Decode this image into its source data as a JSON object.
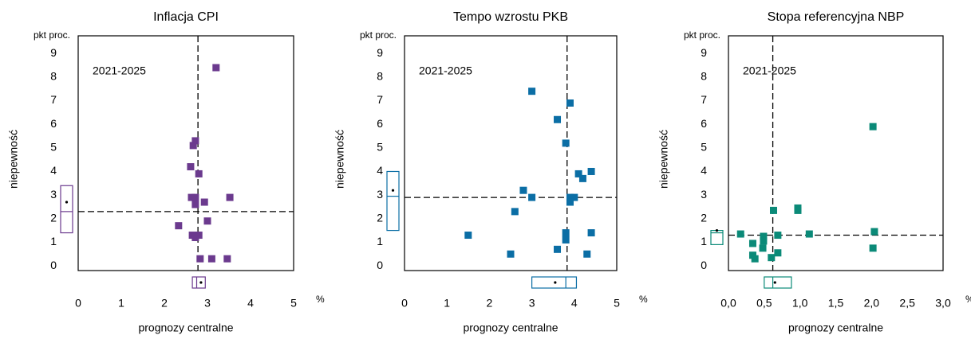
{
  "chart_data": [
    {
      "type": "scatter",
      "title": "Inflacja CPI",
      "y_unit": "pkt proc.",
      "x_unit": "%",
      "y_label": "niepewność",
      "x_label": "prognozy centralne",
      "period": "2021-2025",
      "color": "#6b3a8e",
      "x": [
        3.2,
        2.72,
        2.67,
        2.61,
        2.8,
        2.63,
        2.72,
        2.93,
        2.72,
        3.52,
        3.0,
        2.33,
        2.65,
        2.8,
        2.72,
        2.83,
        3.1,
        3.46
      ],
      "y": [
        8.4,
        5.3,
        5.1,
        4.2,
        3.9,
        2.9,
        2.9,
        2.7,
        2.6,
        2.9,
        1.9,
        1.7,
        1.3,
        1.3,
        1.2,
        0.3,
        0.3,
        0.3
      ],
      "ref_x": 2.78,
      "ref_y": 2.3,
      "box_x": {
        "q1": 2.65,
        "median": 2.75,
        "q3": 2.95,
        "mean": 2.85
      },
      "box_y": {
        "q1": 1.4,
        "median": 2.3,
        "q3": 3.4,
        "mean": 2.7
      },
      "xlim": [
        0,
        5
      ],
      "ylim": [
        -0.2,
        9.75
      ],
      "xticks": [
        0,
        1,
        2,
        3,
        4,
        5
      ],
      "yticks": [
        0,
        1,
        2,
        3,
        4,
        5,
        6,
        7,
        8,
        9
      ]
    },
    {
      "type": "scatter",
      "title": "Tempo wzrostu PKB",
      "y_unit": "pkt proc.",
      "x_unit": "%",
      "y_label": "niepewność",
      "x_label": "prognozy centralne",
      "period": "2021-2025",
      "color": "#0b6ea5",
      "x": [
        3.0,
        3.9,
        3.6,
        3.8,
        4.1,
        4.4,
        4.2,
        2.8,
        3.0,
        3.9,
        4.0,
        3.9,
        2.6,
        1.5,
        3.8,
        4.4,
        3.8,
        2.5,
        3.6,
        4.3
      ],
      "y": [
        7.4,
        6.9,
        6.2,
        5.2,
        3.9,
        4.0,
        3.7,
        3.2,
        2.9,
        2.9,
        2.9,
        2.7,
        2.3,
        1.3,
        1.4,
        1.4,
        1.1,
        0.5,
        0.7,
        0.5
      ],
      "ref_x": 3.83,
      "ref_y": 2.9,
      "box_x": {
        "q1": 3.0,
        "median": 3.8,
        "q3": 4.05,
        "mean": 3.55
      },
      "box_y": {
        "q1": 1.5,
        "median": 2.95,
        "q3": 4.0,
        "mean": 3.2
      },
      "xlim": [
        0,
        5
      ],
      "ylim": [
        -0.2,
        9.75
      ],
      "xticks": [
        0,
        1,
        2,
        3,
        4,
        5
      ],
      "yticks": [
        0,
        1,
        2,
        3,
        4,
        5,
        6,
        7,
        8,
        9
      ]
    },
    {
      "type": "scatter",
      "title": "Stopa referencyjna NBP",
      "y_unit": "pkt proc.",
      "x_unit": "%",
      "y_label": "niepewność",
      "x_label": "prognozy centralne",
      "period": "2021-2025",
      "color": "#0b8a78",
      "x": [
        0.17,
        0.34,
        0.34,
        0.37,
        0.49,
        0.49,
        0.48,
        0.6,
        0.63,
        0.69,
        0.69,
        0.97,
        0.97,
        1.13,
        2.02,
        2.04,
        2.02
      ],
      "y": [
        1.35,
        0.95,
        0.45,
        0.3,
        1.25,
        1.05,
        0.75,
        0.35,
        2.35,
        1.3,
        0.55,
        2.45,
        2.35,
        1.35,
        5.9,
        1.45,
        0.75
      ],
      "ref_x": 0.62,
      "ref_y": 1.3,
      "box_x": {
        "q1": 0.5,
        "median": 0.62,
        "q3": 0.88,
        "mean": 0.65
      },
      "box_y": {
        "q1": 0.9,
        "median": 1.4,
        "q3": 1.5,
        "mean": 1.5
      },
      "xlim": [
        0,
        3
      ],
      "ylim": [
        -0.2,
        9.75
      ],
      "xticks": [
        {
          "value": 0,
          "label": "0,0"
        },
        {
          "value": 0.5,
          "label": "0,5"
        },
        {
          "value": 1,
          "label": "1,0"
        },
        {
          "value": 1.5,
          "label": "1,5"
        },
        {
          "value": 2,
          "label": "2,0"
        },
        {
          "value": 2.5,
          "label": "2,5"
        },
        {
          "value": 3,
          "label": "3,0"
        }
      ],
      "yticks": [
        0,
        1,
        2,
        3,
        4,
        5,
        6,
        7,
        8,
        9
      ]
    }
  ]
}
